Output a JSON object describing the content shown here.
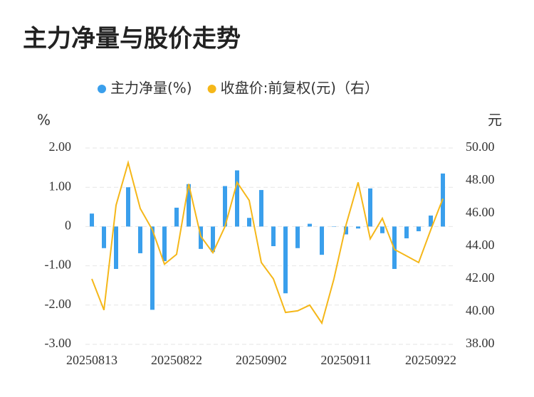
{
  "chart_data": {
    "type": "bar_line",
    "title": "主力净量与股价走势",
    "y_unit": "%",
    "y2_unit": "元",
    "categories": [
      "20250813",
      null,
      null,
      null,
      null,
      null,
      null,
      "20250822",
      null,
      null,
      null,
      null,
      null,
      null,
      "20250902",
      null,
      null,
      null,
      null,
      null,
      null,
      "20250911",
      null,
      null,
      null,
      null,
      null,
      null,
      "20250922",
      null
    ],
    "series": [
      {
        "name": "主力净量(%)",
        "type": "bar",
        "color": "#3a9fec",
        "values": [
          0.33,
          -0.55,
          -1.08,
          1.0,
          -0.68,
          -2.12,
          -0.88,
          0.48,
          1.08,
          -0.57,
          -0.65,
          1.03,
          1.43,
          0.22,
          0.93,
          -0.5,
          -1.7,
          -0.55,
          0.07,
          -0.72,
          0.0,
          -0.2,
          -0.05,
          0.97,
          -0.17,
          -1.08,
          -0.3,
          -0.12,
          0.28,
          1.35
        ]
      },
      {
        "name": "收盘价:前复权(元)（右）",
        "type": "line",
        "axis": "y2",
        "color": "#f5b719",
        "values": [
          42.0,
          40.1,
          46.5,
          49.1,
          46.3,
          45.0,
          42.9,
          43.5,
          47.8,
          44.6,
          43.6,
          45.2,
          47.9,
          46.8,
          43.0,
          42.0,
          39.95,
          40.05,
          40.4,
          39.3,
          42.0,
          45.3,
          47.9,
          44.45,
          45.7,
          43.8,
          43.4,
          43.0,
          45.0,
          46.9
        ]
      }
    ],
    "ylim": [
      -3,
      2
    ],
    "yticks": [
      {
        "value": -3,
        "label": "-3.00"
      },
      {
        "value": -2,
        "label": "-2.00"
      },
      {
        "value": -1,
        "label": "-1.00"
      },
      0,
      {
        "value": 1,
        "label": "1.00"
      },
      {
        "value": 2,
        "label": "2.00"
      }
    ],
    "y2lim": [
      38,
      50
    ],
    "y2ticks": [
      {
        "value": 38,
        "label": "38.00"
      },
      {
        "value": 40,
        "label": "40.00"
      },
      {
        "value": 42,
        "label": "42.00"
      },
      {
        "value": 44,
        "label": "44.00"
      },
      {
        "value": 46,
        "label": "46.00"
      },
      {
        "value": 48,
        "label": "48.00"
      },
      {
        "value": 50,
        "label": "50.00"
      }
    ],
    "grid": true,
    "legend": "top"
  }
}
